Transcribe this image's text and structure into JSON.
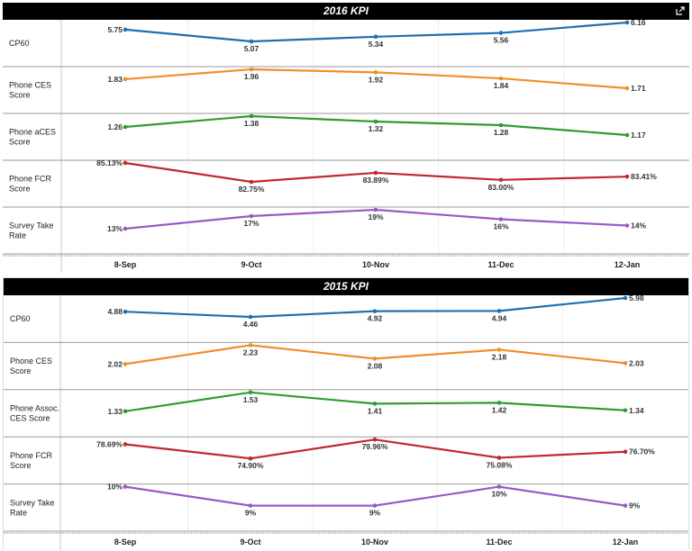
{
  "chart_data": [
    {
      "type": "line",
      "title": "2016 KPI",
      "x": [
        "8-Sep",
        "9-Oct",
        "10-Nov",
        "11-Dec",
        "12-Jan"
      ],
      "grid": true,
      "rows": [
        {
          "label": "CP60",
          "color": "#1f6fb2",
          "values": [
            5.75,
            5.07,
            5.34,
            5.56,
            6.16
          ],
          "labels": [
            "5.75",
            "5.07",
            "5.34",
            "5.56",
            "6.16"
          ]
        },
        {
          "label": "Phone CES Score",
          "color": "#f28e2b",
          "values": [
            1.83,
            1.96,
            1.92,
            1.84,
            1.71
          ],
          "labels": [
            "1.83",
            "1.96",
            "1.92",
            "1.84",
            "1.71"
          ]
        },
        {
          "label": "Phone aCES Score",
          "color": "#2e9d2e",
          "values": [
            1.26,
            1.38,
            1.32,
            1.28,
            1.17
          ],
          "labels": [
            "1.26",
            "1.38",
            "1.32",
            "1.28",
            "1.17"
          ]
        },
        {
          "label": "Phone FCR Score",
          "color": "#c0282d",
          "values": [
            85.13,
            82.75,
            83.89,
            83.0,
            83.41
          ],
          "labels": [
            "85.13%",
            "82.75%",
            "83.89%",
            "83.00%",
            "83.41%"
          ]
        },
        {
          "label": "Survey Take Rate",
          "color": "#9b59c6",
          "values": [
            13,
            17,
            19,
            16,
            14
          ],
          "labels": [
            "13%",
            "17%",
            "19%",
            "16%",
            "14%"
          ]
        }
      ]
    },
    {
      "type": "line",
      "title": "2015 KPI",
      "x": [
        "8-Sep",
        "9-Oct",
        "10-Nov",
        "11-Dec",
        "12-Jan"
      ],
      "grid": true,
      "rows": [
        {
          "label": "CP60",
          "color": "#1f6fb2",
          "values": [
            4.88,
            4.46,
            4.92,
            4.94,
            5.98
          ],
          "labels": [
            "4.88",
            "4.46",
            "4.92",
            "4.94",
            "5.98"
          ]
        },
        {
          "label": "Phone CES Score",
          "color": "#f28e2b",
          "values": [
            2.02,
            2.23,
            2.08,
            2.18,
            2.03
          ],
          "labels": [
            "2.02",
            "2.23",
            "2.08",
            "2.18",
            "2.03"
          ]
        },
        {
          "label": "Phone Assoc. CES Score",
          "color": "#2e9d2e",
          "values": [
            1.33,
            1.53,
            1.41,
            1.42,
            1.34
          ],
          "labels": [
            "1.33",
            "1.53",
            "1.41",
            "1.42",
            "1.34"
          ]
        },
        {
          "label": "Phone FCR Score",
          "color": "#c0282d",
          "values": [
            78.69,
            74.9,
            79.96,
            75.08,
            76.7
          ],
          "labels": [
            "78.69%",
            "74.90%",
            "79.96%",
            "75.08%",
            "76.70%"
          ]
        },
        {
          "label": "Survey Take Rate",
          "color": "#9b59c6",
          "values": [
            10,
            9,
            9,
            10,
            9
          ],
          "labels": [
            "10%",
            "9%",
            "9%",
            "10%",
            "9%"
          ]
        }
      ]
    }
  ]
}
